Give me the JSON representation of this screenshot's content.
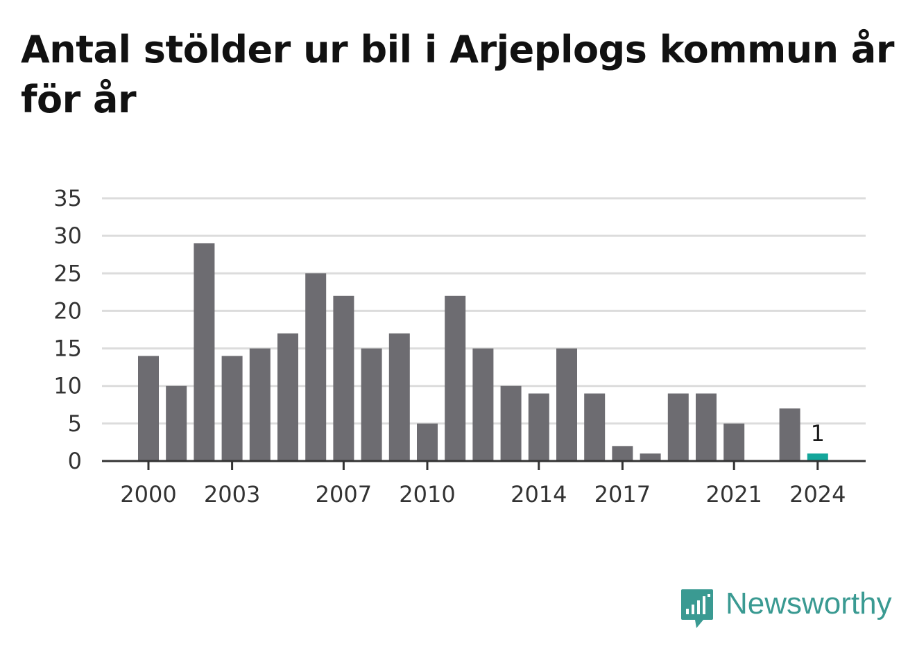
{
  "title": "Antal stölder ur bil i Arjeplogs kommun år för år",
  "brand": {
    "name": "Newsworthy",
    "color": "#3a9a92",
    "icon": "newsworthy-logo-icon"
  },
  "colors": {
    "bar": "#6d6c71",
    "highlight": "#14a69b",
    "grid": "#dcdcdc",
    "axis": "#333333"
  },
  "chart_data": {
    "type": "bar",
    "title": "Antal stölder ur bil i Arjeplogs kommun år för år",
    "categories": [
      "2000",
      "2001",
      "2002",
      "2003",
      "2004",
      "2005",
      "2006",
      "2007",
      "2008",
      "2009",
      "2010",
      "2011",
      "2012",
      "2013",
      "2014",
      "2015",
      "2016",
      "2017",
      "2018",
      "2019",
      "2020",
      "2021",
      "2022",
      "2023",
      "2024"
    ],
    "values": [
      14,
      10,
      29,
      14,
      15,
      17,
      25,
      22,
      15,
      17,
      5,
      22,
      15,
      10,
      9,
      15,
      9,
      2,
      1,
      9,
      9,
      5,
      0,
      7,
      1
    ],
    "x_tick_labels": [
      "2000",
      "2003",
      "2007",
      "2010",
      "2014",
      "2017",
      "2021",
      "2024"
    ],
    "y_ticks": [
      0,
      5,
      10,
      15,
      20,
      25,
      30,
      35
    ],
    "ylim": [
      0,
      35
    ],
    "xlabel": "",
    "ylabel": "",
    "grid": true,
    "highlight": {
      "category": "2024",
      "label": "1"
    }
  }
}
